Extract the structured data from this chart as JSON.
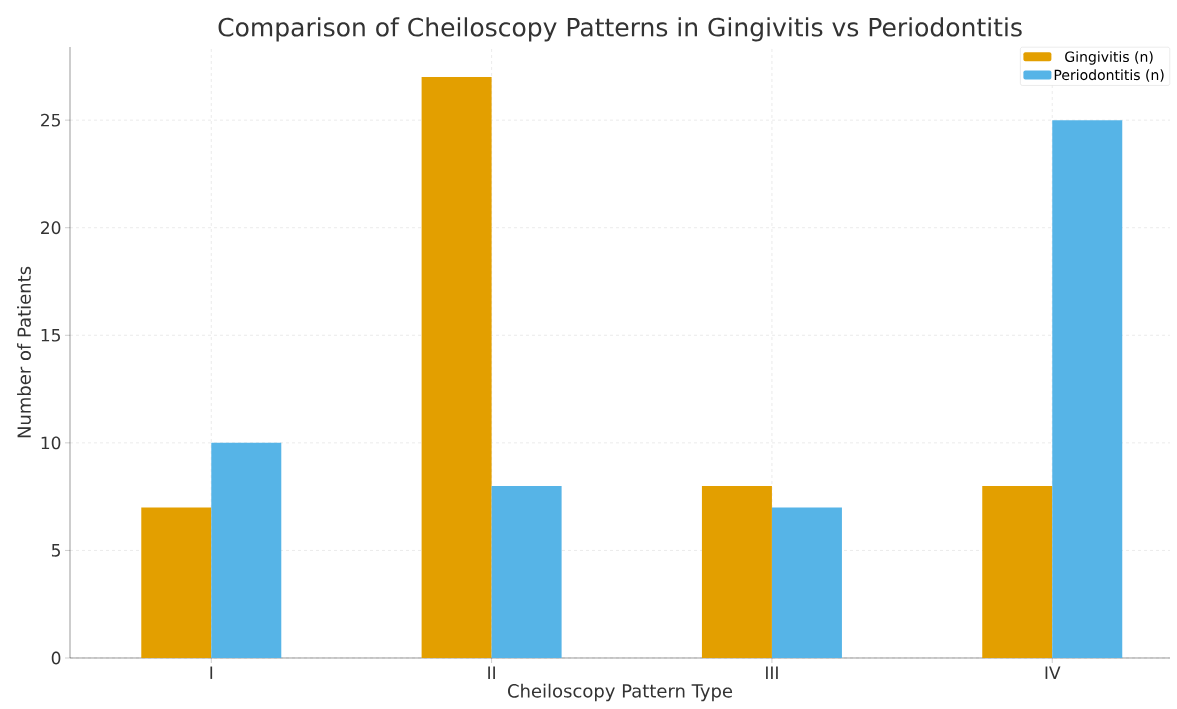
{
  "chart_data": {
    "type": "bar",
    "title": "Comparison of Cheiloscopy Patterns in Gingivitis vs Periodontitis",
    "xlabel": "Cheiloscopy Pattern Type",
    "ylabel": "Number of Patients",
    "categories": [
      "I",
      "II",
      "III",
      "IV"
    ],
    "series": [
      {
        "name": "Gingivitis (n)",
        "color": "#e39f00",
        "values": [
          7,
          27,
          8,
          8
        ]
      },
      {
        "name": "Periodontitis (n)",
        "color": "#56b4e7",
        "values": [
          10,
          8,
          7,
          25
        ]
      }
    ],
    "ylim": [
      0,
      28.4
    ],
    "yticks": [
      0,
      5,
      10,
      15,
      20,
      25
    ],
    "grid": true,
    "legend": "top right"
  }
}
